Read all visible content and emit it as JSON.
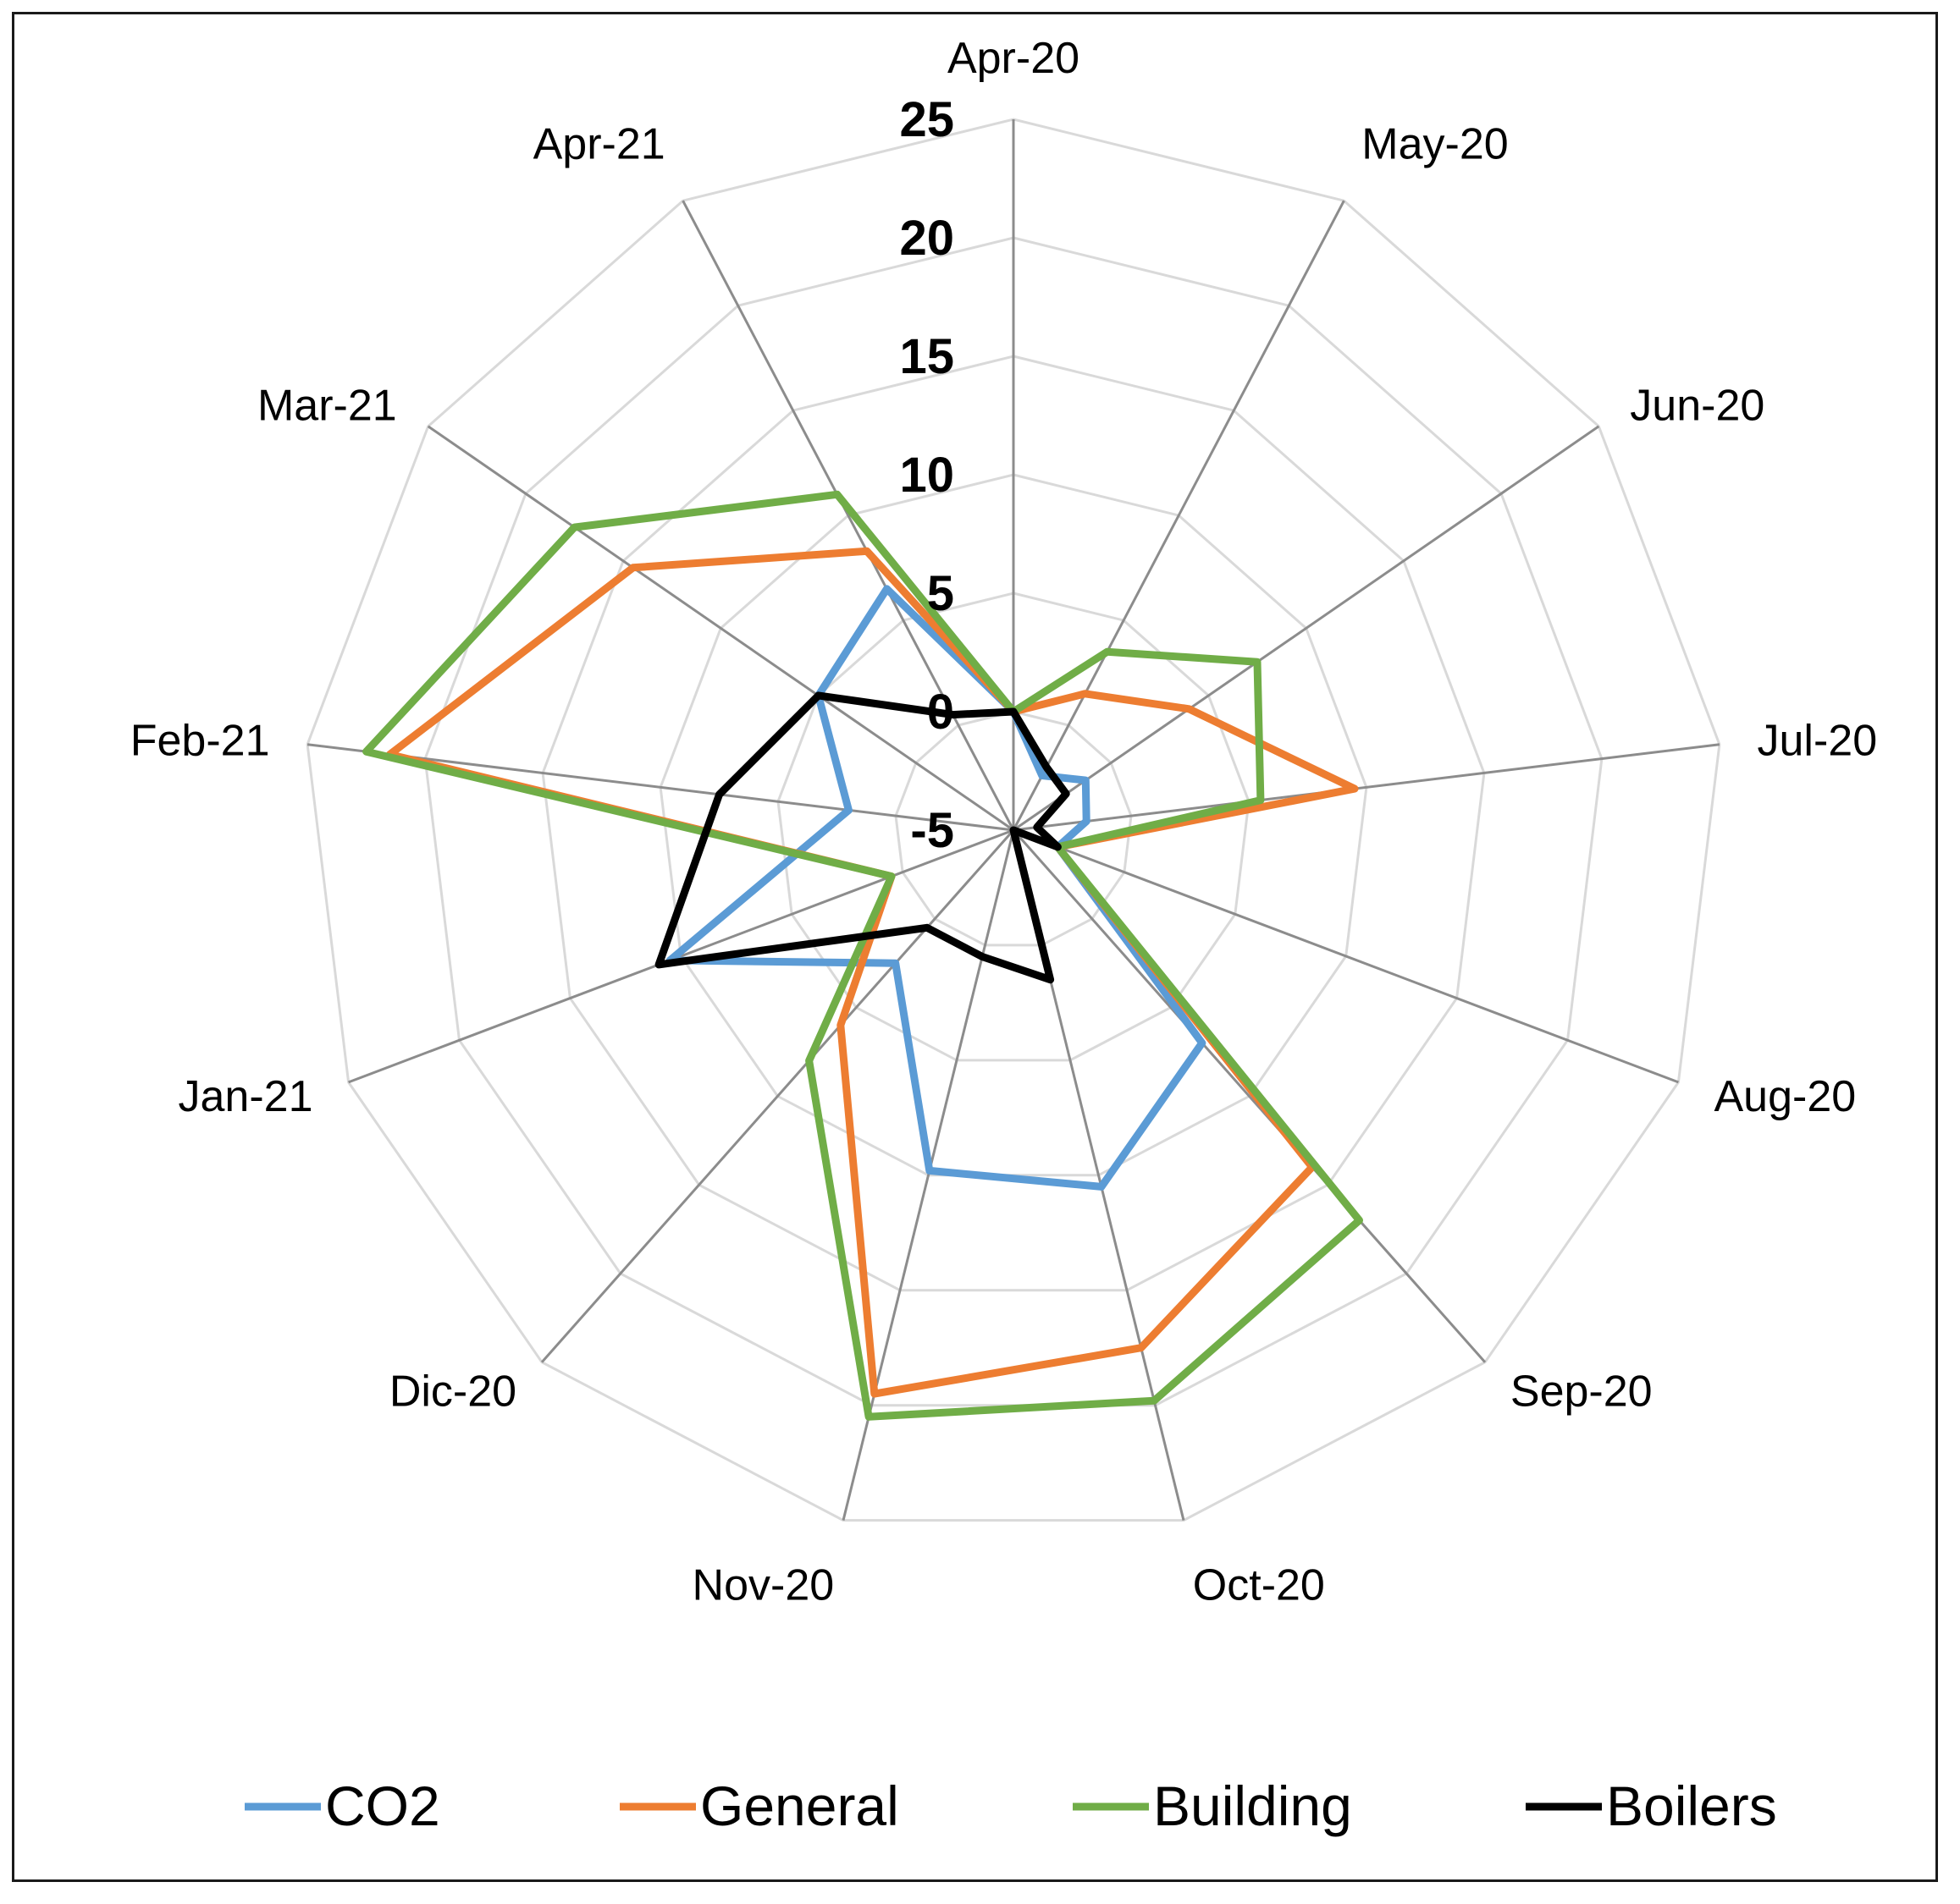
{
  "chart_data": {
    "type": "radar",
    "categories": [
      "Apr-20",
      "May-20",
      "Jun-20",
      "Jul-20",
      "Aug-20",
      "Sep-20",
      "Oct-20",
      "Nov-20",
      "Dic-20",
      "Jan-21",
      "Feb-21",
      "Mar-21",
      "Apr-21"
    ],
    "rlim": [
      -5,
      25
    ],
    "ticks": [
      "-5",
      "0",
      "5",
      "10",
      "15",
      "20",
      "25"
    ],
    "tick_values": [
      -5,
      0,
      5,
      10,
      15,
      20,
      25
    ],
    "grid": true,
    "legend_position": "bottom",
    "series": [
      {
        "name": "CO2",
        "color": "#5b9bd5",
        "values": [
          0,
          -2.4,
          -1.3,
          -1.9,
          -3,
          7,
          10.5,
          9.8,
          2.5,
          10.5,
          2,
          5,
          6.5
        ]
      },
      {
        "name": "General",
        "color": "#ed7d31",
        "values": [
          0,
          1.5,
          4,
          9.5,
          -3,
          14,
          17.5,
          19.5,
          6,
          0.5,
          21.5,
          14.5,
          8.3
        ]
      },
      {
        "name": "Building",
        "color": "#70ad47",
        "values": [
          0,
          3.5,
          7.5,
          5.5,
          -3,
          17,
          19.8,
          20.5,
          8,
          0.5,
          22.5,
          17.5,
          11
        ]
      },
      {
        "name": "Boilers",
        "color": "#000000",
        "values": [
          0,
          -2,
          -2.3,
          -4,
          -3,
          -5,
          1.5,
          0.5,
          0.5,
          11,
          7.5,
          5,
          0.5
        ]
      }
    ]
  }
}
